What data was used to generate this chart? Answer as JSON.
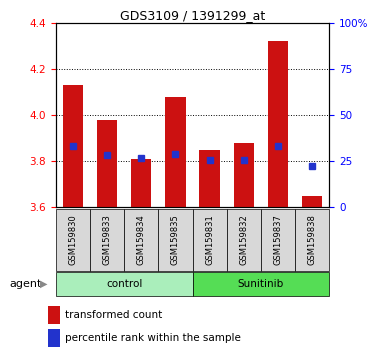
{
  "title": "GDS3109 / 1391299_at",
  "samples": [
    "GSM159830",
    "GSM159833",
    "GSM159834",
    "GSM159835",
    "GSM159831",
    "GSM159832",
    "GSM159837",
    "GSM159838"
  ],
  "red_values": [
    4.13,
    3.98,
    3.81,
    4.08,
    3.85,
    3.88,
    4.32,
    3.65
  ],
  "blue_values": [
    3.865,
    3.825,
    3.815,
    3.83,
    3.805,
    3.805,
    3.865,
    3.78
  ],
  "ylim": [
    3.6,
    4.4
  ],
  "yticks_left": [
    3.6,
    3.8,
    4.0,
    4.2,
    4.4
  ],
  "yticks_right": [
    0,
    25,
    50,
    75,
    100
  ],
  "bar_bottom": 3.6,
  "bar_color": "#cc1111",
  "blue_color": "#2233cc",
  "bar_width": 0.6,
  "sample_bg": "#d8d8d8",
  "plot_bg": "#ffffff",
  "fig_bg": "#ffffff",
  "control_color": "#aaeebb",
  "sunitinib_color": "#55dd55",
  "group_spans": [
    [
      0,
      4,
      "control"
    ],
    [
      4,
      8,
      "Sunitinib"
    ]
  ],
  "agent_label": "agent",
  "legend": [
    {
      "color": "#cc1111",
      "marker": "s",
      "label": "transformed count"
    },
    {
      "color": "#2233cc",
      "marker": "s",
      "label": "percentile rank within the sample"
    }
  ]
}
